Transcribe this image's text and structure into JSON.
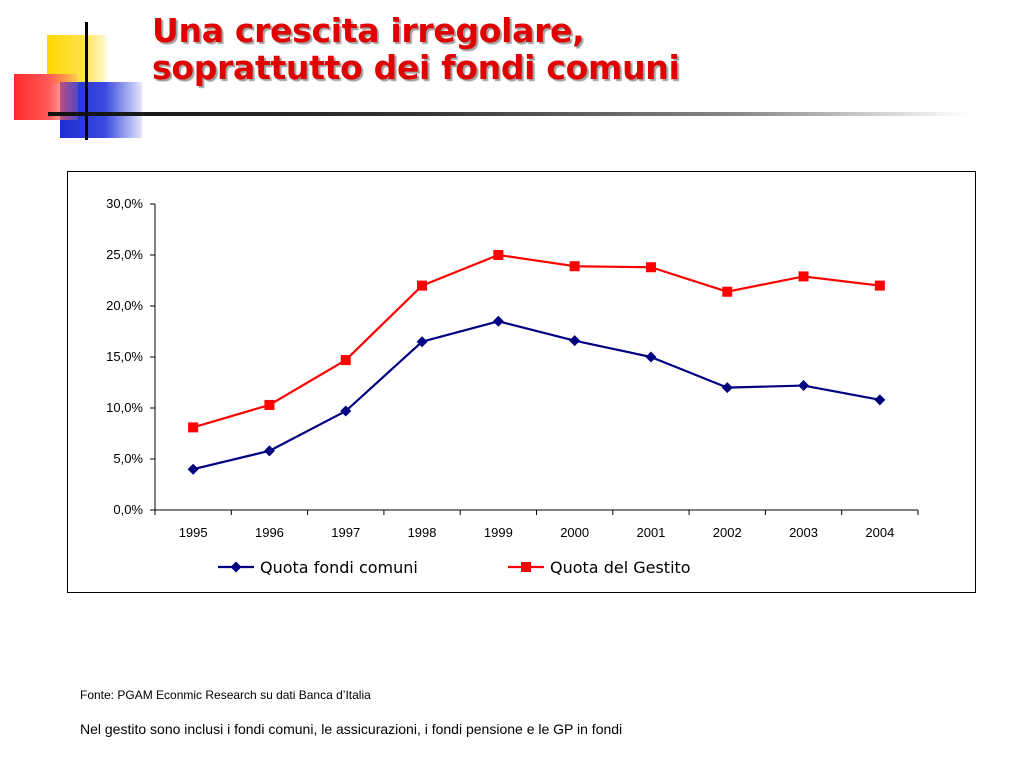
{
  "title": {
    "line1": "Una crescita irregolare,",
    "line2": "soprattutto dei fondi comuni"
  },
  "colors": {
    "title": "#e00000",
    "series1": "#000080",
    "series2": "#ff0000",
    "deco_yellow": "#ffd700",
    "deco_red": "#ff3030",
    "deco_blue": "#2030d0"
  },
  "chart_data": {
    "type": "line",
    "title": "",
    "xlabel": "",
    "ylabel": "",
    "categories": [
      "1995",
      "1996",
      "1997",
      "1998",
      "1999",
      "2000",
      "2001",
      "2002",
      "2003",
      "2004"
    ],
    "ylim": [
      0,
      0.3
    ],
    "yticks": [
      0,
      0.05,
      0.1,
      0.15,
      0.2,
      0.25,
      0.3
    ],
    "ytick_labels": [
      "0,0%",
      "5,0%",
      "10,0%",
      "15,0%",
      "20,0%",
      "25,0%",
      "30,0%"
    ],
    "grid": false,
    "legend_position": "bottom",
    "series": [
      {
        "name": "Quota fondi comuni",
        "color": "#000080",
        "marker": "diamond",
        "values": [
          0.04,
          0.058,
          0.097,
          0.165,
          0.185,
          0.166,
          0.15,
          0.12,
          0.122,
          0.108
        ]
      },
      {
        "name": "Quota del Gestito",
        "color": "#ff0000",
        "marker": "square",
        "values": [
          0.081,
          0.103,
          0.147,
          0.22,
          0.25,
          0.239,
          0.238,
          0.214,
          0.229,
          0.22
        ]
      }
    ]
  },
  "footer": {
    "source": "Fonte: PGAM Econmic Research su dati Banca d’Italia",
    "note": "Nel gestito sono inclusi i fondi comuni, le assicurazioni, i fondi pensione e le GP in fondi"
  }
}
